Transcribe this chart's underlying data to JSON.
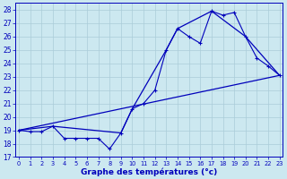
{
  "xlabel": "Graphe des températures (°c)",
  "bg_color": "#cce8f0",
  "line_color": "#0000bb",
  "grid_color": "#aaccd8",
  "ylim": [
    17,
    28.5
  ],
  "xlim": [
    -0.3,
    23.3
  ],
  "yticks": [
    17,
    18,
    19,
    20,
    21,
    22,
    23,
    24,
    25,
    26,
    27,
    28
  ],
  "xticks": [
    0,
    1,
    2,
    3,
    4,
    5,
    6,
    7,
    8,
    9,
    10,
    11,
    12,
    13,
    14,
    15,
    16,
    17,
    18,
    19,
    20,
    21,
    22,
    23
  ],
  "series_markers": {
    "x": [
      0,
      1,
      2,
      3,
      4,
      5,
      6,
      7,
      8,
      9,
      10,
      11,
      12,
      13,
      14,
      15,
      16,
      17,
      18,
      19,
      20,
      21,
      22,
      23
    ],
    "y": [
      19.0,
      18.9,
      18.9,
      19.3,
      18.4,
      18.4,
      18.4,
      18.4,
      17.6,
      18.8,
      20.6,
      21.0,
      22.0,
      25.0,
      26.6,
      26.0,
      25.5,
      27.9,
      27.6,
      27.8,
      26.0,
      24.4,
      23.8,
      23.1
    ]
  },
  "series_envelope": {
    "x": [
      0,
      3,
      9,
      10,
      13,
      14,
      17,
      20,
      23
    ],
    "y": [
      19.0,
      19.3,
      18.8,
      20.6,
      25.0,
      26.6,
      27.9,
      26.0,
      23.1
    ]
  },
  "series_linear": {
    "x": [
      0,
      23
    ],
    "y": [
      19.0,
      23.1
    ]
  }
}
